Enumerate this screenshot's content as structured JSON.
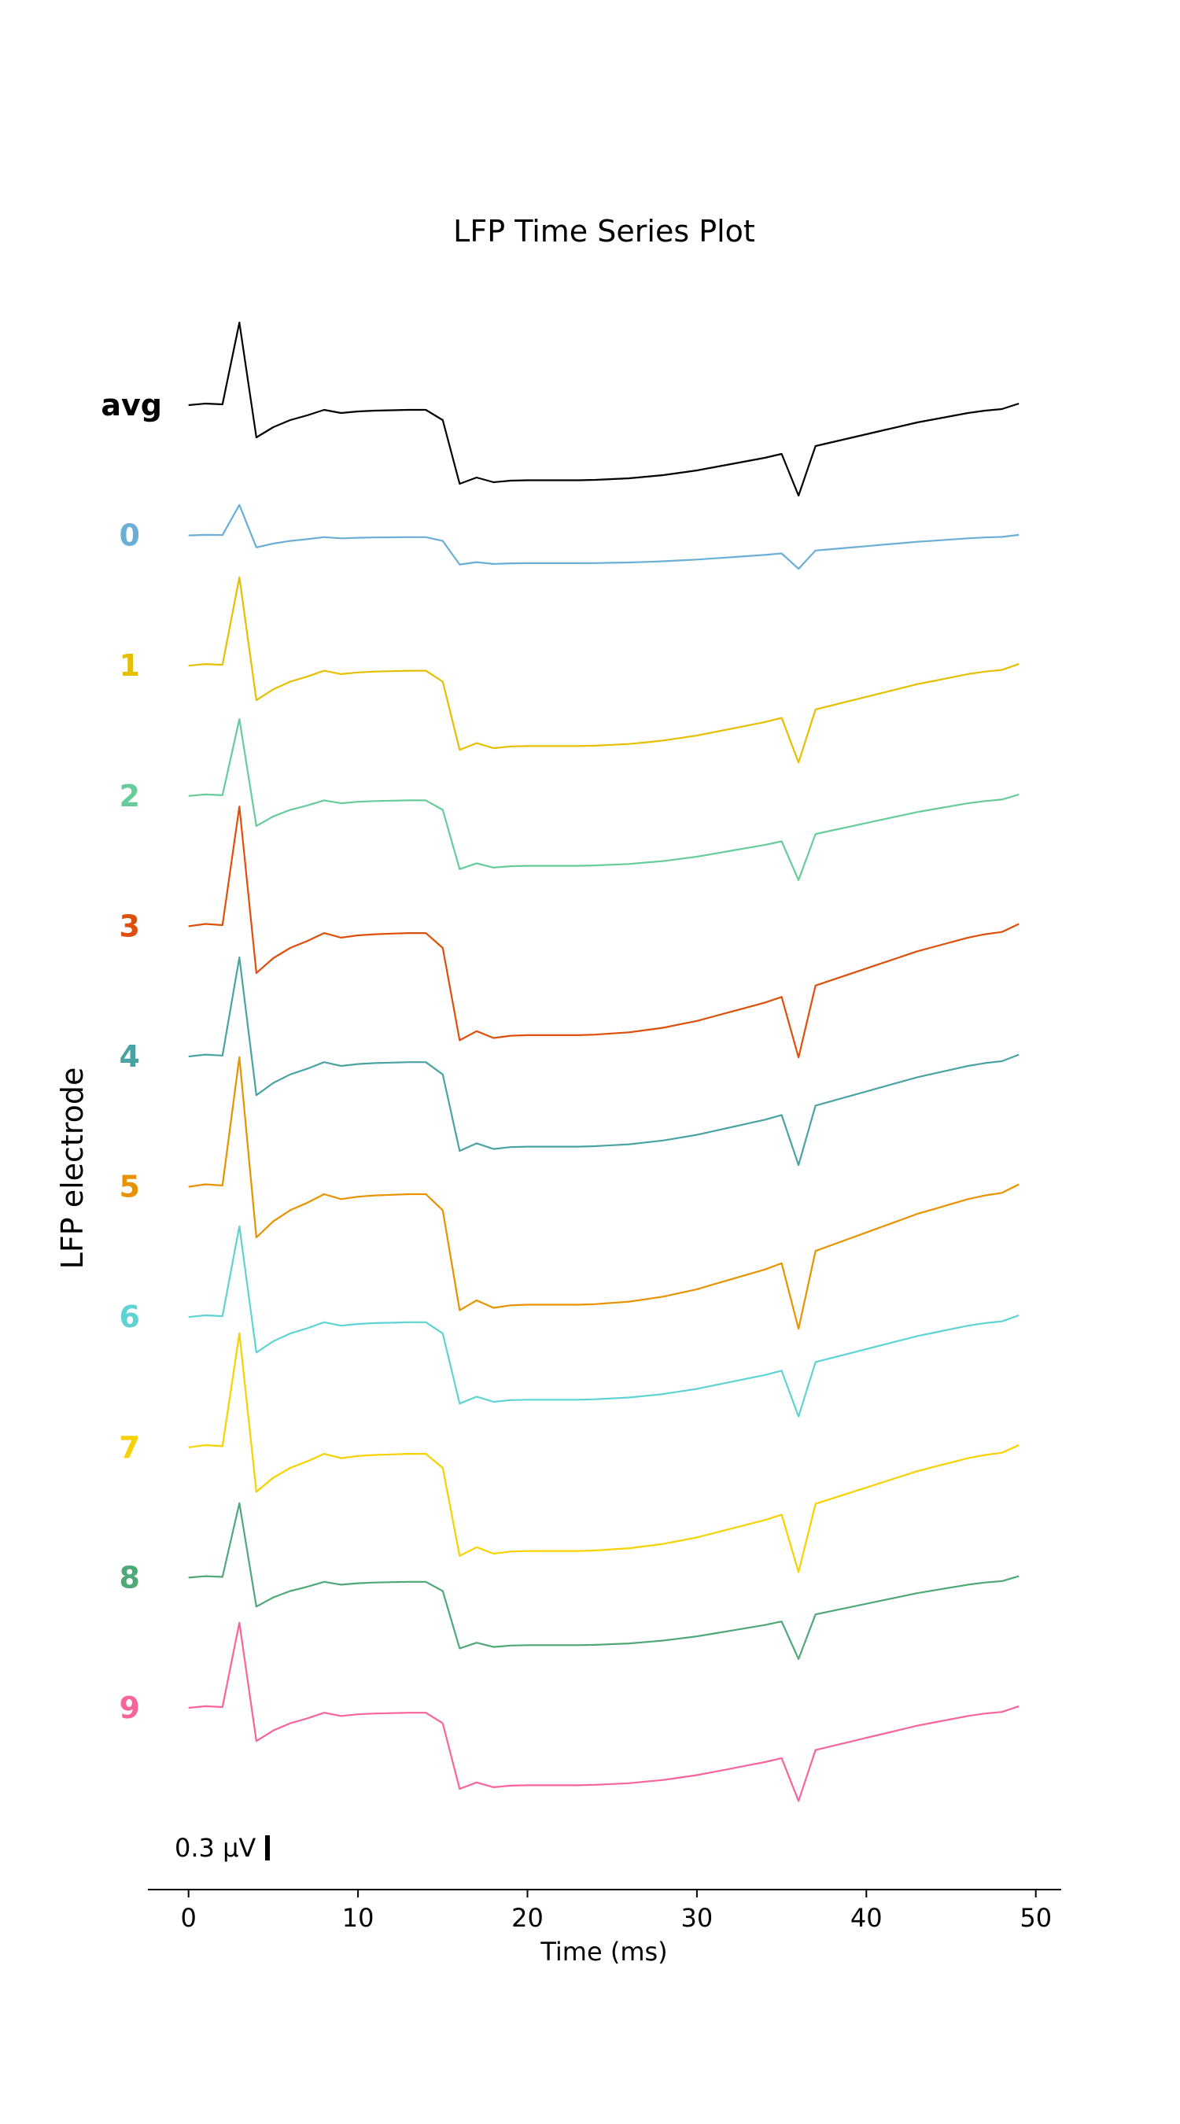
{
  "chart_data": {
    "type": "line",
    "title": "LFP Time Series Plot",
    "xlabel": "Time (ms)",
    "ylabel": "LFP electrode",
    "xlim": [
      -2.4,
      51.5
    ],
    "xticks": [
      0,
      10,
      20,
      30,
      40,
      50
    ],
    "scale_bar": {
      "value": 0.3,
      "label": "0.3 μV"
    },
    "t": [
      0,
      1,
      2,
      3,
      4,
      5,
      6,
      7,
      8,
      9,
      10,
      11,
      12,
      13,
      14,
      15,
      16,
      17,
      18,
      19,
      20,
      21,
      22,
      23,
      24,
      25,
      26,
      27,
      28,
      29,
      30,
      31,
      32,
      33,
      34,
      35,
      36,
      37,
      38,
      39,
      40,
      41,
      42,
      43,
      44,
      45,
      46,
      47,
      48,
      49
    ],
    "shape": [
      0,
      0.02,
      0.01,
      1.05,
      -0.41,
      -0.28,
      -0.19,
      -0.13,
      -0.06,
      -0.1,
      -0.08,
      -0.07,
      -0.065,
      -0.06,
      -0.06,
      -0.19,
      -1.0,
      -0.92,
      -0.98,
      -0.96,
      -0.955,
      -0.955,
      -0.955,
      -0.955,
      -0.95,
      -0.94,
      -0.93,
      -0.91,
      -0.89,
      -0.86,
      -0.83,
      -0.79,
      -0.75,
      -0.71,
      -0.67,
      -0.62,
      -1.15,
      -0.52,
      -0.47,
      -0.42,
      -0.37,
      -0.32,
      -0.27,
      -0.22,
      -0.18,
      -0.14,
      -0.1,
      -0.07,
      -0.05,
      0.02
    ],
    "series": [
      {
        "name": "avg",
        "color": "#000000",
        "gain": 1.0
      },
      {
        "name": "0",
        "color": "#6baed6",
        "gain": 0.37
      },
      {
        "name": "1",
        "color": "#e6bf00",
        "gain": 1.07
      },
      {
        "name": "2",
        "color": "#66cc99",
        "gain": 0.93
      },
      {
        "name": "3",
        "color": "#dd4f0a",
        "gain": 1.45
      },
      {
        "name": "4",
        "color": "#4aa3a3",
        "gain": 1.2
      },
      {
        "name": "5",
        "color": "#e89200",
        "gain": 1.57
      },
      {
        "name": "6",
        "color": "#5fd3d3",
        "gain": 1.1
      },
      {
        "name": "7",
        "color": "#f7d100",
        "gain": 1.38
      },
      {
        "name": "8",
        "color": "#4fa878",
        "gain": 0.9
      },
      {
        "name": "9",
        "color": "#f7649c",
        "gain": 1.03
      }
    ]
  }
}
